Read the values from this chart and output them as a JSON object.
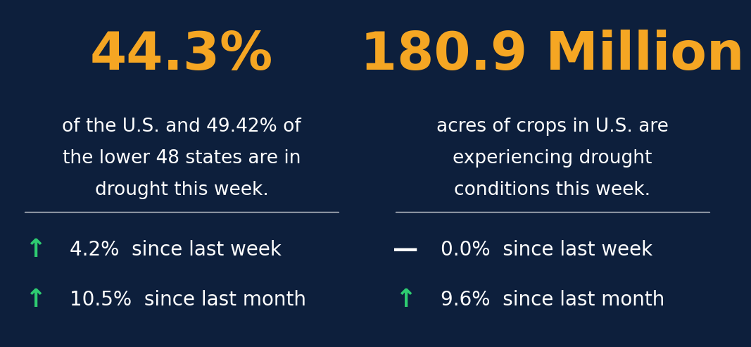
{
  "bg_color": "#0d1f3c",
  "white_color": "#ffffff",
  "green_color": "#2ecc71",
  "orange_color": "#f5a623",
  "left": {
    "big_text": "44.3%",
    "desc_line1": "of the U.S. and 49.42% of",
    "desc_line2": "the lower 48 states are in",
    "desc_line3": "drought this week.",
    "row1_symbol": "↑",
    "row1_symbol_color": "#2ecc71",
    "row1_text": "4.2%  since last week",
    "row2_symbol": "↑",
    "row2_symbol_color": "#2ecc71",
    "row2_text": "10.5%  since last month"
  },
  "right": {
    "big_text": "180.9 Million",
    "desc_line1": "acres of crops in U.S. are",
    "desc_line2": "experiencing drought",
    "desc_line3": "conditions this week.",
    "row1_symbol": "—",
    "row1_symbol_color": "#ffffff",
    "row1_text": "0.0%  since last week",
    "row2_symbol": "↑",
    "row2_symbol_color": "#2ecc71",
    "row2_text": "9.6%  since last month"
  },
  "big_fontsize": 54,
  "desc_fontsize": 19,
  "stat_fontsize": 20,
  "symbol_fontsize": 22
}
